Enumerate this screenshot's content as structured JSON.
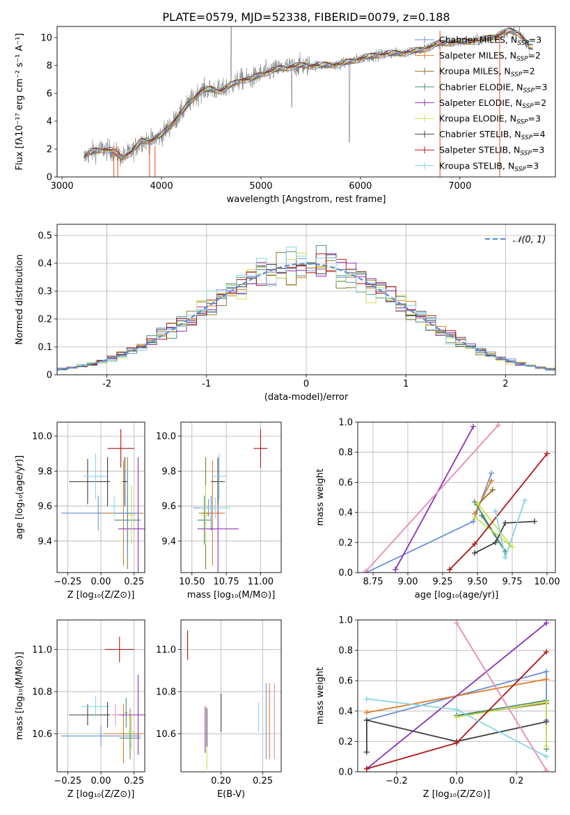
{
  "figure": {
    "title": "PLATE=0579, MJD=52338, FIBERID=0079, z=0.188"
  },
  "models": [
    {
      "name": "Chabrier MILES",
      "nssp": "3",
      "color": "#6a8fd8"
    },
    {
      "name": "Salpeter MILES",
      "nssp": "2",
      "color": "#e07b22"
    },
    {
      "name": "Kroupa MILES",
      "nssp": "2",
      "color": "#8a7a2a"
    },
    {
      "name": "Chabrier ELODIE",
      "nssp": "3",
      "color": "#4e8c7a"
    },
    {
      "name": "Salpeter ELODIE",
      "nssp": "2",
      "color": "#8b2fb5"
    },
    {
      "name": "Kroupa ELODIE",
      "nssp": "3",
      "color": "#cbe04a"
    },
    {
      "name": "Chabrier STELIB",
      "nssp": "4",
      "color": "#404040"
    },
    {
      "name": "Salpeter STELIB",
      "nssp": "3",
      "color": "#b01515"
    },
    {
      "name": "Kroupa STELIB",
      "nssp": "3",
      "color": "#84d6e0"
    }
  ],
  "chart_data": [
    {
      "id": "spectrum",
      "type": "line",
      "xlabel": "wavelength [Angstrom, rest frame]",
      "ylabel": "Flux [fλ10⁻¹⁷ erg cm⁻² s⁻¹ A⁻¹]",
      "xlim": [
        2950,
        7960
      ],
      "ylim": [
        0,
        10.8
      ],
      "xticks": [
        3000,
        4000,
        5000,
        6000,
        7000
      ],
      "yticks": [
        0,
        2,
        4,
        6,
        8,
        10
      ],
      "grid": false,
      "legend": "top-right",
      "data_anchor_x": [
        3220,
        3300,
        3400,
        3500,
        3600,
        3700,
        3800,
        3900,
        4000,
        4100,
        4200,
        4300,
        4400,
        4500,
        4600,
        4700,
        4800,
        4900,
        5000,
        5200,
        5400,
        5600,
        5800,
        6000,
        6200,
        6400,
        6600,
        6800,
        7000,
        7200,
        7400,
        7500,
        7600,
        7700
      ],
      "data_anchor_y": [
        1.4,
        1.8,
        2.0,
        1.9,
        1.4,
        1.8,
        2.6,
        2.6,
        3.0,
        3.8,
        4.6,
        5.5,
        6.2,
        6.3,
        6.2,
        6.6,
        7.0,
        7.0,
        7.4,
        7.8,
        8.0,
        8.0,
        8.1,
        8.5,
        8.8,
        8.9,
        9.1,
        9.6,
        9.7,
        9.8,
        10.2,
        10.5,
        10.3,
        9.3
      ]
    },
    {
      "id": "residual-histogram",
      "type": "bar",
      "xlabel": "(data-model)/error",
      "ylabel": "Normed distribution",
      "xlim": [
        -2.5,
        2.5
      ],
      "ylim": [
        0,
        0.54
      ],
      "xticks": [
        -2,
        -1,
        0,
        1,
        2
      ],
      "yticks": [
        0,
        0.1,
        0.2,
        0.3,
        0.4,
        0.5
      ],
      "grid": true,
      "legend": "top-right",
      "reference_label": "𝒩(0, 1)",
      "bin_width": 0.1
    },
    {
      "id": "age-vs-Z",
      "type": "scatter",
      "xlabel": "Z [log₁₀(Z/Z⊙)]",
      "ylabel": "age  [log₁₀(age/yr)]",
      "xlim": [
        -0.33,
        0.33
      ],
      "ylim": [
        9.22,
        10.08
      ],
      "xticks": [
        -0.25,
        0,
        0.25
      ],
      "xticklabels": [
        "−0.25",
        "0.00",
        "0.25"
      ],
      "yticks": [
        9.4,
        9.6,
        9.8,
        10.0
      ],
      "yticklabels": [
        "9.4",
        "9.6",
        "9.8",
        "10.0"
      ],
      "grid": true,
      "points": [
        {
          "m": 0,
          "x": -0.02,
          "y": 9.56,
          "xe": 0.28,
          "ye": 0.1
        },
        {
          "m": 1,
          "x": 0.17,
          "y": 9.56,
          "xe": 0.15,
          "ye": 0.3
        },
        {
          "m": 2,
          "x": 0.2,
          "y": 9.56,
          "xe": 0.05,
          "ye": 0.32
        },
        {
          "m": 3,
          "x": 0.2,
          "y": 9.52,
          "xe": 0.1,
          "ye": 0.14
        },
        {
          "m": 4,
          "x": 0.28,
          "y": 9.47,
          "xe": 0.15,
          "ye": 0.41
        },
        {
          "m": 5,
          "x": 0.23,
          "y": 9.55,
          "xe": 0.03,
          "ye": 0.17
        },
        {
          "m": 6,
          "x": -0.1,
          "y": 9.74,
          "xe": 0.14,
          "ye": 0.13
        },
        {
          "m": 7,
          "x": 0.15,
          "y": 9.93,
          "xe": 0.1,
          "ye": 0.11
        },
        {
          "m": 8,
          "x": -0.04,
          "y": 9.77,
          "xe": 0.09,
          "ye": 0.13
        },
        {
          "m": 0,
          "x": 0.2,
          "y": 9.56,
          "xe": 0.1,
          "ye": 0.25
        },
        {
          "m": 6,
          "x": 0.05,
          "y": 9.74,
          "xe": 0.02,
          "ye": 0.14
        },
        {
          "m": 6,
          "x": 0.18,
          "y": 9.74,
          "xe": 0.02,
          "ye": 0.14
        },
        {
          "m": 8,
          "x": 0.1,
          "y": 9.6,
          "xe": 0.04,
          "ye": 0.06
        }
      ]
    },
    {
      "id": "age-vs-mass",
      "type": "scatter",
      "xlabel": "mass [log₁₀(M/M⊙)]",
      "ylabel": "",
      "xlim": [
        10.42,
        11.15
      ],
      "ylim": [
        9.22,
        10.08
      ],
      "xticks": [
        10.5,
        10.75,
        11.0
      ],
      "xticklabels": [
        "10.50",
        "10.75",
        "11.00"
      ],
      "yticks": [
        9.4,
        9.6,
        9.8,
        10.0
      ],
      "yticklabels": [
        "9.4",
        "9.6",
        "9.8",
        "10.0"
      ],
      "grid": true,
      "points": [
        {
          "m": 0,
          "x": 10.64,
          "y": 9.56,
          "xe": 0.09,
          "ye": 0.1
        },
        {
          "m": 1,
          "x": 10.65,
          "y": 9.56,
          "xe": 0.09,
          "ye": 0.3
        },
        {
          "m": 2,
          "x": 10.6,
          "y": 9.56,
          "xe": 0.02,
          "ye": 0.32
        },
        {
          "m": 3,
          "x": 10.59,
          "y": 9.52,
          "xe": 0.05,
          "ye": 0.14
        },
        {
          "m": 4,
          "x": 10.69,
          "y": 9.47,
          "xe": 0.15,
          "ye": 0.41
        },
        {
          "m": 5,
          "x": 10.6,
          "y": 9.55,
          "xe": 0.03,
          "ye": 0.17
        },
        {
          "m": 6,
          "x": 10.69,
          "y": 9.74,
          "xe": 0.05,
          "ye": 0.13
        },
        {
          "m": 7,
          "x": 11.0,
          "y": 9.93,
          "xe": 0.05,
          "ye": 0.11
        },
        {
          "m": 8,
          "x": 10.7,
          "y": 9.77,
          "xe": 0.05,
          "ye": 0.13
        },
        {
          "m": 0,
          "x": 10.62,
          "y": 9.59,
          "xe": 0.11,
          "ye": 0.05
        },
        {
          "m": 8,
          "x": 10.67,
          "y": 9.59,
          "xe": 0.11,
          "ye": 0.06
        }
      ]
    },
    {
      "id": "weight-vs-age",
      "type": "line",
      "xlabel": "age  [log₁₀(age/yr)]",
      "ylabel": "mass weight",
      "xlim": [
        8.64,
        10.06
      ],
      "ylim": [
        0,
        1
      ],
      "xticks": [
        8.75,
        9.0,
        9.25,
        9.5,
        9.75,
        10.0
      ],
      "xticklabels": [
        "8.75",
        "9.00",
        "9.25",
        "9.50",
        "9.75",
        "10.00"
      ],
      "yticks": [
        0,
        0.2,
        0.4,
        0.6,
        0.8,
        1.0
      ],
      "yticklabels": [
        "0.0",
        "0.2",
        "0.4",
        "0.6",
        "0.8",
        "1.0"
      ],
      "grid": true,
      "series": [
        {
          "m": 0,
          "x": [
            8.7,
            9.47,
            9.6
          ],
          "y": [
            0.0,
            0.34,
            0.66
          ]
        },
        {
          "m": 1,
          "x": [
            9.48,
            9.6
          ],
          "y": [
            0.39,
            0.61
          ]
        },
        {
          "m": 2,
          "x": [
            9.5,
            9.61
          ],
          "y": [
            0.45,
            0.55
          ]
        },
        {
          "m": 3,
          "x": [
            9.48,
            9.7,
            9.53
          ],
          "y": [
            0.47,
            0.14,
            0.38
          ]
        },
        {
          "m": 4,
          "x": [
            8.91,
            9.47
          ],
          "y": [
            0.02,
            0.97
          ]
        },
        {
          "m": 5,
          "x": [
            9.48,
            9.75,
            9.5
          ],
          "y": [
            0.37,
            0.17,
            0.46
          ]
        },
        {
          "m": 6,
          "x": [
            9.48,
            9.63,
            9.7,
            9.91
          ],
          "y": [
            0.13,
            0.2,
            0.33,
            0.34
          ]
        },
        {
          "m": 7,
          "x": [
            9.3,
            9.48,
            10.0
          ],
          "y": [
            0.02,
            0.19,
            0.79
          ]
        },
        {
          "m": 8,
          "x": [
            9.63,
            9.7,
            9.84
          ],
          "y": [
            0.41,
            0.1,
            0.48
          ]
        },
        {
          "m": 9,
          "x": [
            8.7,
            9.65
          ],
          "y": [
            0.01,
            0.98
          ]
        }
      ]
    },
    {
      "id": "mass-vs-Z",
      "type": "scatter",
      "xlabel": "Z [log₁₀(Z/Z⊙)]",
      "ylabel": "mass [log₁₀(M/M⊙)]",
      "xlim": [
        -0.33,
        0.33
      ],
      "ylim": [
        10.42,
        11.14
      ],
      "xticks": [
        -0.25,
        0,
        0.25
      ],
      "xticklabels": [
        "−0.25",
        "0.00",
        "0.25"
      ],
      "yticks": [
        10.6,
        10.8,
        11.0
      ],
      "yticklabels": [
        "10.6",
        "10.8",
        "11.0"
      ],
      "grid": true,
      "points": [
        {
          "m": 0,
          "x": 0.0,
          "y": 10.59,
          "xe": 0.3,
          "ye": 0.05
        },
        {
          "m": 1,
          "x": 0.17,
          "y": 10.6,
          "xe": 0.15,
          "ye": 0.14
        },
        {
          "m": 2,
          "x": 0.22,
          "y": 10.6,
          "xe": 0.06,
          "ye": 0.12
        },
        {
          "m": 3,
          "x": 0.22,
          "y": 10.58,
          "xe": 0.08,
          "ye": 0.06
        },
        {
          "m": 4,
          "x": 0.28,
          "y": 10.69,
          "xe": 0.15,
          "ye": 0.19
        },
        {
          "m": 5,
          "x": 0.23,
          "y": 10.61,
          "xe": 0.03,
          "ye": 0.08
        },
        {
          "m": 6,
          "x": -0.1,
          "y": 10.69,
          "xe": 0.14,
          "ye": 0.05
        },
        {
          "m": 7,
          "x": 0.14,
          "y": 11.0,
          "xe": 0.11,
          "ye": 0.06
        },
        {
          "m": 8,
          "x": -0.04,
          "y": 10.73,
          "xe": 0.11,
          "ye": 0.05
        },
        {
          "m": 6,
          "x": 0.05,
          "y": 10.69,
          "xe": 0.02,
          "ye": 0.06
        },
        {
          "m": 9,
          "x": 0.11,
          "y": 10.69,
          "xe": 0.03,
          "ye": 0.05
        },
        {
          "m": 3,
          "x": 0.19,
          "y": 10.7,
          "xe": 0.01,
          "ye": 0.07
        }
      ]
    },
    {
      "id": "mass-vs-ebv",
      "type": "scatter",
      "xlabel": "E(B-V)",
      "ylabel": "",
      "xlim": [
        0.152,
        0.272
      ],
      "ylim": [
        10.42,
        11.14
      ],
      "xticks": [
        0.2,
        0.25
      ],
      "xticklabels": [
        "0.20",
        "0.25"
      ],
      "yticks": [
        10.6,
        10.8,
        11.0
      ],
      "yticklabels": [
        "10.6",
        "10.8",
        "11.0"
      ],
      "grid": true,
      "points": [
        {
          "m": 7,
          "x": 0.16,
          "y": 11.02,
          "xe": 0.0,
          "ye": 0.07
        },
        {
          "m": 4,
          "x": 0.181,
          "y": 10.62,
          "xe": 0.0,
          "ye": 0.11
        },
        {
          "m": 5,
          "x": 0.183,
          "y": 10.58,
          "xe": 0.0,
          "ye": 0.15
        },
        {
          "m": 6,
          "x": 0.183,
          "y": 10.63,
          "xe": 0.0,
          "ye": 0.09
        },
        {
          "m": 6,
          "x": 0.2,
          "y": 10.7,
          "xe": 0.0,
          "ye": 0.09
        },
        {
          "m": 8,
          "x": 0.245,
          "y": 10.68,
          "xe": 0.0,
          "ye": 0.07
        },
        {
          "m": 0,
          "x": 0.254,
          "y": 10.66,
          "xe": 0.0,
          "ye": 0.18
        },
        {
          "m": 1,
          "x": 0.258,
          "y": 10.66,
          "xe": 0.0,
          "ye": 0.18
        },
        {
          "m": 9,
          "x": 0.264,
          "y": 10.66,
          "xe": 0.0,
          "ye": 0.18
        }
      ]
    },
    {
      "id": "weight-vs-Z",
      "type": "line",
      "xlabel": "Z [log₁₀(Z/Z⊙)]",
      "ylabel": "mass weight",
      "xlim": [
        -0.33,
        0.33
      ],
      "ylim": [
        0,
        1
      ],
      "xticks": [
        -0.2,
        0.0,
        0.2
      ],
      "xticklabels": [
        "−0.2",
        "0.0",
        "0.2"
      ],
      "yticks": [
        0,
        0.2,
        0.4,
        0.6,
        0.8,
        1.0
      ],
      "yticklabels": [
        "0.0",
        "0.2",
        "0.4",
        "0.6",
        "0.8",
        "1.0"
      ],
      "grid": true,
      "series": [
        {
          "m": 0,
          "x": [
            -0.3,
            0.3,
            0.3
          ],
          "y": [
            0.34,
            0.66,
            0.34
          ]
        },
        {
          "m": 1,
          "x": [
            -0.3,
            0.3
          ],
          "y": [
            0.39,
            0.61
          ]
        },
        {
          "m": 2,
          "x": [
            0.0,
            0.3
          ],
          "y": [
            0.37,
            0.45
          ]
        },
        {
          "m": 3,
          "x": [
            0.0,
            0.3,
            0.3
          ],
          "y": [
            0.37,
            0.47,
            0.15
          ]
        },
        {
          "m": 4,
          "x": [
            -0.3,
            0.3
          ],
          "y": [
            0.02,
            0.98
          ]
        },
        {
          "m": 5,
          "x": [
            0.0,
            0.3,
            0.3
          ],
          "y": [
            0.36,
            0.46,
            0.17
          ]
        },
        {
          "m": 6,
          "x": [
            -0.3,
            -0.3,
            0.0,
            0.3
          ],
          "y": [
            0.13,
            0.34,
            0.2,
            0.33
          ]
        },
        {
          "m": 7,
          "x": [
            -0.3,
            0.0,
            0.3
          ],
          "y": [
            0.02,
            0.19,
            0.79
          ]
        },
        {
          "m": 8,
          "x": [
            -0.3,
            0.0,
            0.3
          ],
          "y": [
            0.48,
            0.41,
            0.1
          ]
        },
        {
          "m": 9,
          "x": [
            0.0,
            0.3
          ],
          "y": [
            0.98,
            0.01
          ]
        }
      ]
    }
  ]
}
